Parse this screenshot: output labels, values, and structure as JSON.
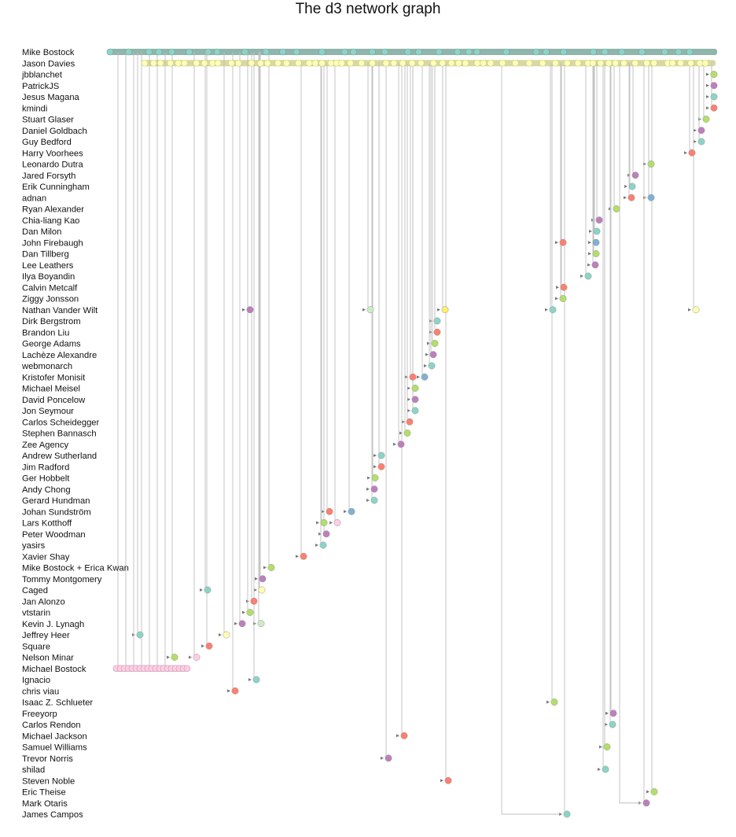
{
  "title": "The d3 network graph",
  "contributors": [
    "Mike Bostock",
    "Jason Davies",
    "jbblanchet",
    "PatrickJS",
    "Jesus Magana",
    "kmindi",
    "Stuart Glaser",
    "Daniel Goldbach",
    "Guy Bedford",
    "Harry Voorhees",
    "Leonardo Dutra",
    "Jared Forsyth",
    "Erik Cunningham",
    "adnan",
    "Ryan Alexander",
    "Chia-liang Kao",
    "Dan Milon",
    "John Firebaugh",
    "Dan Tillberg",
    "Lee Leathers",
    "Ilya Boyandin",
    "Calvin Metcalf",
    "Ziggy Jonsson",
    "Nathan Vander Wilt",
    "Dirk Bergstrom",
    "Brandon Liu",
    "George Adams",
    "Lachèze Alexandre",
    "webmonarch",
    "Kristofer Monisit",
    "Michael Meisel",
    "David Poncelow",
    "Jon Seymour",
    "Carlos Scheidegger",
    "Stephen Bannasch",
    "Zee Agency",
    "Andrew Sutherland",
    "Jim Radford",
    "Ger Hobbelt",
    "Andy Chong",
    "Gerard Hundman",
    "Johan Sundström",
    "Lars Kotthoff",
    "Peter Woodman",
    "yasirs",
    "Xavier Shay",
    "Mike Bostock + Erica Kwan",
    "Tommy Montgomery",
    "Caged",
    "Jan Alonzo",
    "vtstarin",
    "Kevin J. Lynagh",
    "Jeffrey Heer",
    "Square",
    "Nelson Minar",
    "Michael Bostock",
    "Ignacio",
    "chris viau",
    "Isaac Z. Schlueter",
    "Freeyorp",
    "Carlos Rendon",
    "Michael Jackson",
    "Samuel Williams",
    "Trevor Norris",
    "shilad",
    "Steven Noble",
    "Eric Theise",
    "Mark Otaris",
    "James Campos"
  ],
  "colors": {
    "palette": [
      "#8dd3c7",
      "#ffffb3",
      "#bebada",
      "#fb8072",
      "#80b1d3",
      "#fdb462",
      "#b3de69",
      "#fccde5",
      "#d9d9d9",
      "#bc80bd",
      "#ccebc5",
      "#ffed6f"
    ],
    "mike_bostock": "#8dd3c7",
    "jason_davies": "#ffffb3",
    "michael_bostock": "#fccde5",
    "edge": "#bfbfbf",
    "arrow": "#777777"
  }
}
